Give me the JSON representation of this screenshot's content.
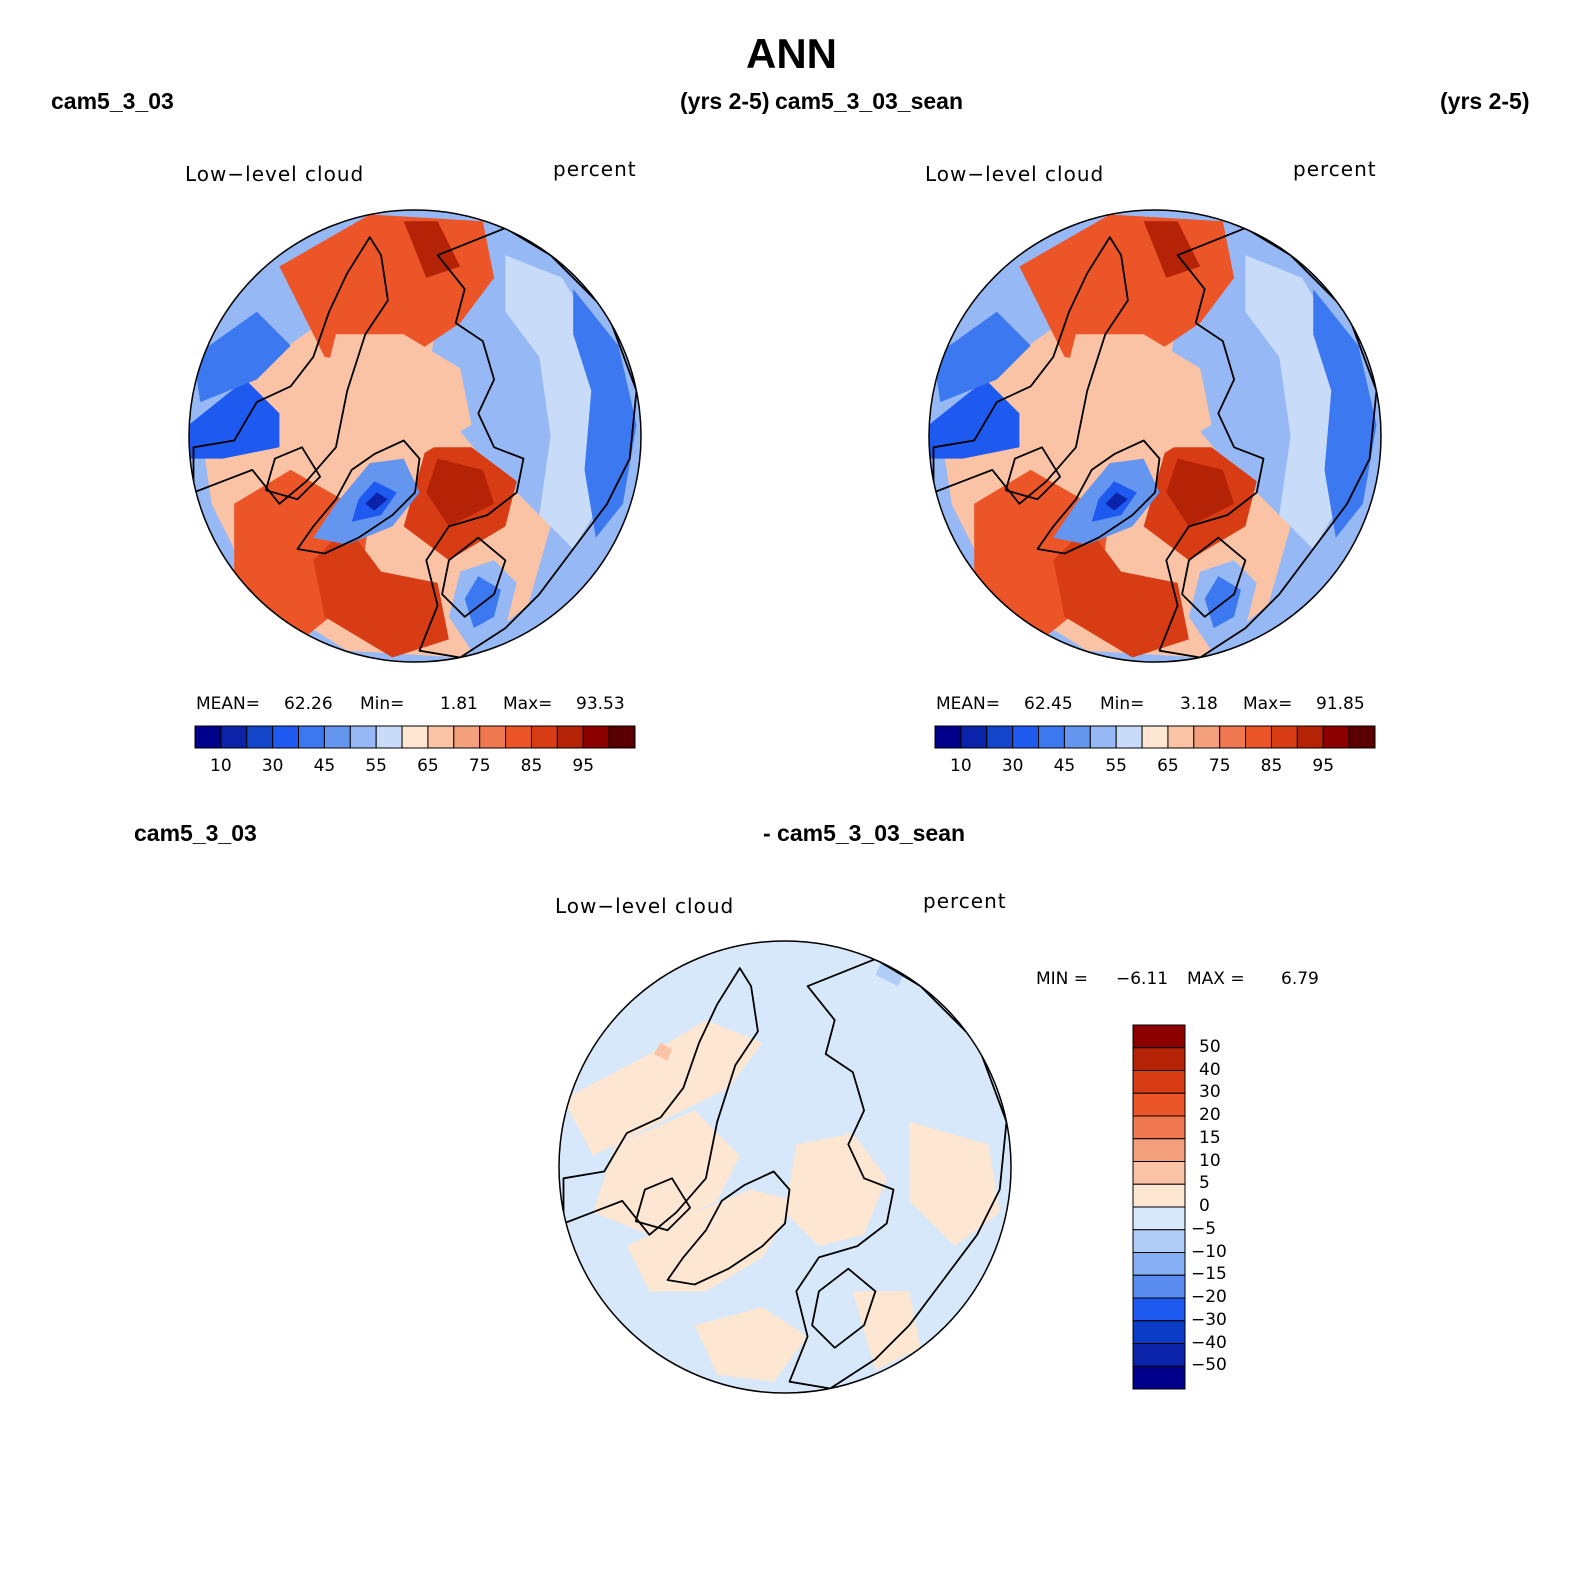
{
  "figure": {
    "title": "ANN",
    "top_left_case": "cam5_3_03",
    "top_left_years": "(yrs 2-5)",
    "top_right_case": "cam5_3_03_sean",
    "top_right_years": "(yrs 2-5)",
    "bottom_left_case": "cam5_3_03",
    "bottom_right_case": "- cam5_3_03_sean"
  },
  "panels": {
    "p1": {
      "title": "Low−level cloud",
      "units": "percent",
      "mean_label": "MEAN=",
      "mean": "62.26",
      "min_label": "Min=",
      "min": "1.81",
      "max_label": "Max=",
      "max": "93.53"
    },
    "p2": {
      "title": "Low−level cloud",
      "units": "percent",
      "mean_label": "MEAN=",
      "mean": "62.45",
      "min_label": "Min=",
      "min": "3.18",
      "max_label": "Max=",
      "max": "91.85"
    },
    "p3": {
      "title": "Low−level cloud",
      "units": "percent",
      "min_label": "MIN =",
      "min": "−6.11",
      "max_label": "MAX =",
      "max": "6.79"
    }
  },
  "colorbar_abs": {
    "labels": [
      "10",
      "30",
      "45",
      "55",
      "65",
      "75",
      "85",
      "95"
    ],
    "levels": [
      5,
      10,
      20,
      30,
      40,
      45,
      50,
      55,
      60,
      65,
      70,
      75,
      80,
      85,
      90,
      95
    ],
    "colors": [
      "#00008a",
      "#0a23a8",
      "#1446cc",
      "#1e5af0",
      "#3c78f0",
      "#6496f0",
      "#96b9f5",
      "#c8dcfa",
      "#fde6d2",
      "#fac3a5",
      "#f5a07d",
      "#f07850",
      "#ec5528",
      "#d73c14",
      "#b42305",
      "#8c0000",
      "#5a0000"
    ]
  },
  "colorbar_diff": {
    "labels": [
      "50",
      "40",
      "30",
      "20",
      "15",
      "10",
      "5",
      "0",
      "−5",
      "−10",
      "−15",
      "−20",
      "−30",
      "−40",
      "−50"
    ],
    "colors_top_to_bottom": [
      "#8c0000",
      "#b42305",
      "#d73c14",
      "#ec5528",
      "#f07850",
      "#f5a07d",
      "#fac3a5",
      "#fde6d2",
      "#d7e8fa",
      "#afcdf7",
      "#87aff5",
      "#5a8cf0",
      "#1e5af0",
      "#0a3cc8",
      "#0a23a8",
      "#00008a"
    ]
  },
  "chart_data": [
    {
      "type": "heatmap",
      "title": "Low−level cloud",
      "subtitle": "cam5_3_03 (yrs 2-5)",
      "units": "percent",
      "projection": "north polar stereographic",
      "stats": {
        "mean": 62.26,
        "min": 1.81,
        "max": 93.53
      },
      "contour_levels": [
        5,
        10,
        20,
        30,
        40,
        45,
        50,
        55,
        60,
        65,
        70,
        75,
        80,
        85,
        90,
        95
      ]
    },
    {
      "type": "heatmap",
      "title": "Low−level cloud",
      "subtitle": "cam5_3_03_sean (yrs 2-5)",
      "units": "percent",
      "projection": "north polar stereographic",
      "stats": {
        "mean": 62.45,
        "min": 3.18,
        "max": 91.85
      },
      "contour_levels": [
        5,
        10,
        20,
        30,
        40,
        45,
        50,
        55,
        60,
        65,
        70,
        75,
        80,
        85,
        90,
        95
      ]
    },
    {
      "type": "heatmap",
      "title": "Low−level cloud",
      "subtitle": "cam5_3_03 - cam5_3_03_sean",
      "units": "percent",
      "projection": "north polar stereographic",
      "stats": {
        "min": -6.11,
        "max": 6.79
      },
      "contour_levels": [
        -50,
        -40,
        -30,
        -20,
        -15,
        -10,
        -5,
        0,
        5,
        10,
        15,
        20,
        30,
        40,
        50
      ]
    }
  ]
}
